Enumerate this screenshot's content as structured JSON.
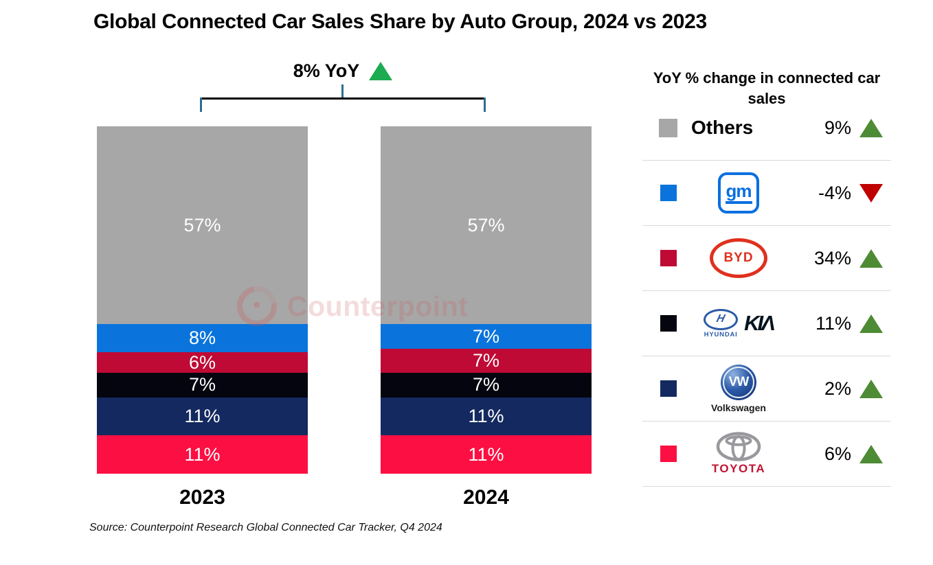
{
  "title": "Global Connected Car Sales Share by Auto Group, 2024 vs 2023",
  "annotation": {
    "label": "8% YoY",
    "direction": "up"
  },
  "watermark": {
    "text": "Counterpoint"
  },
  "source": "Source: Counterpoint Research Global Connected Car Tracker, Q4 2024",
  "colors": {
    "annotation_green": "#1cab50",
    "legend_green": "#4e8b35",
    "down_red": "#c00000",
    "bracket_teal": "#2d6e8f",
    "divider_grey": "#d9d9d9",
    "bar_label_white": "#ffffff"
  },
  "chart_data": {
    "type": "bar",
    "subtype": "100%-stacked-column",
    "title": "Global Connected Car Sales Share by Auto Group, 2024 vs 2023",
    "categories": [
      "2023",
      "2024"
    ],
    "series": [
      {
        "name": "Others",
        "color": "#a7a7a7",
        "values": [
          57,
          57
        ]
      },
      {
        "name": "GM",
        "color": "#0a74dc",
        "values": [
          8,
          7
        ]
      },
      {
        "name": "BYD",
        "color": "#bf0a35",
        "values": [
          6,
          7
        ]
      },
      {
        "name": "Hyundai-Kia",
        "color": "#05050f",
        "values": [
          7,
          7
        ]
      },
      {
        "name": "Volkswagen",
        "color": "#13295f",
        "values": [
          11,
          11
        ]
      },
      {
        "name": "Toyota",
        "color": "#fc0f42",
        "values": [
          11,
          11
        ]
      }
    ],
    "value_suffix": "%",
    "ylim": [
      0,
      100
    ],
    "grid": false,
    "legend_position": "right",
    "total_change_annotation": "8% YoY up"
  },
  "legend": {
    "header": "YoY % change in connected car sales",
    "rows": [
      {
        "name": "Others",
        "label": "Others",
        "value": "9%",
        "direction": "up",
        "swatch": "#a7a7a7"
      },
      {
        "name": "GM",
        "logo_text": "gm",
        "value": "-4%",
        "direction": "down",
        "swatch": "#0a74dc"
      },
      {
        "name": "BYD",
        "logo_text": "BYD",
        "value": "34%",
        "direction": "up",
        "swatch": "#bf0a35"
      },
      {
        "name": "Hyundai-Kia",
        "logo_hyundai_mark": "H",
        "logo_hyundai": "HYUNDAI",
        "logo_kia": "KIΛ",
        "value": "11%",
        "direction": "up",
        "swatch": "#05050f"
      },
      {
        "name": "Volkswagen",
        "logo_mark": "VW",
        "logo_text": "Volkswagen",
        "value": "2%",
        "direction": "up",
        "swatch": "#13295f"
      },
      {
        "name": "Toyota",
        "logo_text": "TOYOTA",
        "value": "6%",
        "direction": "up",
        "swatch": "#fc0f42"
      }
    ]
  }
}
